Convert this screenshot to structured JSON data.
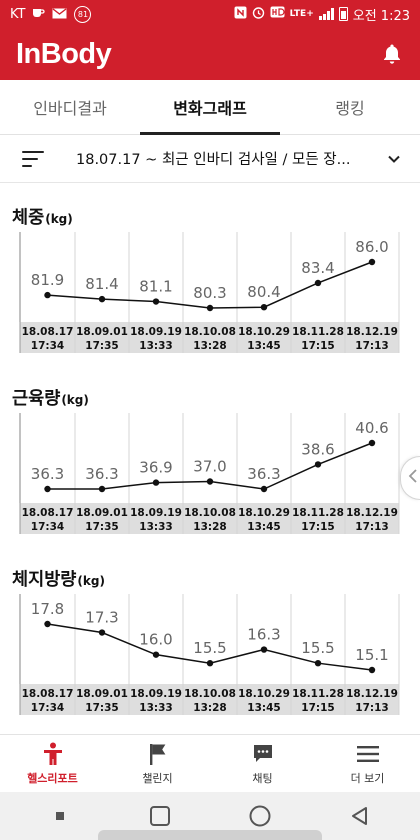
{
  "status_bar": {
    "carrier": "KT",
    "badge": "81",
    "network": "LTE+",
    "time": "오전 1:23"
  },
  "app": {
    "logo": "InBody"
  },
  "tabs": [
    {
      "label": "인바디결과",
      "active": false
    },
    {
      "label": "변화그래프",
      "active": true
    },
    {
      "label": "랭킹",
      "active": false
    }
  ],
  "filter": {
    "text": "18.07.17 ~ 최근 인바디 검사일 / 모든 장..."
  },
  "charts": [
    {
      "title": "체중",
      "unit": "(kg)",
      "dates": [
        "18.08.17",
        "18.09.01",
        "18.09.19",
        "18.10.08",
        "18.10.29",
        "18.11.28",
        "18.12.19"
      ],
      "times": [
        "17:34",
        "17:35",
        "13:33",
        "13:28",
        "13:45",
        "17:15",
        "17:13"
      ],
      "values": [
        81.9,
        81.4,
        81.1,
        80.3,
        80.4,
        83.4,
        86.0
      ],
      "labels": [
        "81.9",
        "81.4",
        "81.1",
        "80.3",
        "80.4",
        "83.4",
        "86.0"
      ]
    },
    {
      "title": "근육량",
      "unit": "(kg)",
      "dates": [
        "18.08.17",
        "18.09.01",
        "18.09.19",
        "18.10.08",
        "18.10.29",
        "18.11.28",
        "18.12.19"
      ],
      "times": [
        "17:34",
        "17:35",
        "13:33",
        "13:28",
        "13:45",
        "17:15",
        "17:13"
      ],
      "values": [
        36.3,
        36.3,
        36.9,
        37.0,
        36.3,
        38.6,
        40.6
      ],
      "labels": [
        "36.3",
        "36.3",
        "36.9",
        "37.0",
        "36.3",
        "38.6",
        "40.6"
      ]
    },
    {
      "title": "체지방량",
      "unit": "(kg)",
      "dates": [
        "18.08.17",
        "18.09.01",
        "18.09.19",
        "18.10.08",
        "18.10.29",
        "18.11.28",
        "18.12.19"
      ],
      "times": [
        "17:34",
        "17:35",
        "13:33",
        "13:28",
        "13:45",
        "17:15",
        "17:13"
      ],
      "values": [
        17.8,
        17.3,
        16.0,
        15.5,
        16.3,
        15.5,
        15.1
      ],
      "labels": [
        "17.8",
        "17.3",
        "16.0",
        "15.5",
        "16.3",
        "15.5",
        "15.1"
      ]
    }
  ],
  "chart_data": [
    {
      "type": "line",
      "title": "체중(kg)",
      "categories": [
        "18.08.17 17:34",
        "18.09.01 17:35",
        "18.09.19 13:33",
        "18.10.08 13:28",
        "18.10.29 13:45",
        "18.11.28 17:15",
        "18.12.19 17:13"
      ],
      "series": [
        {
          "values": [
            81.9,
            81.4,
            81.1,
            80.3,
            80.4,
            83.4,
            86.0
          ]
        }
      ]
    },
    {
      "type": "line",
      "title": "근육량(kg)",
      "categories": [
        "18.08.17 17:34",
        "18.09.01 17:35",
        "18.09.19 13:33",
        "18.10.08 13:28",
        "18.10.29 13:45",
        "18.11.28 17:15",
        "18.12.19 17:13"
      ],
      "series": [
        {
          "values": [
            36.3,
            36.3,
            36.9,
            37.0,
            36.3,
            38.6,
            40.6
          ]
        }
      ]
    },
    {
      "type": "line",
      "title": "체지방량(kg)",
      "categories": [
        "18.08.17 17:34",
        "18.09.01 17:35",
        "18.09.19 13:33",
        "18.10.08 13:28",
        "18.10.29 13:45",
        "18.11.28 17:15",
        "18.12.19 17:13"
      ],
      "series": [
        {
          "values": [
            17.8,
            17.3,
            16.0,
            15.5,
            16.3,
            15.5,
            15.1
          ]
        }
      ]
    }
  ],
  "bottom_nav": [
    {
      "label": "헬스리포트",
      "icon": "person-icon",
      "active": true
    },
    {
      "label": "챌린지",
      "icon": "flag-icon",
      "active": false
    },
    {
      "label": "채팅",
      "icon": "chat-icon",
      "active": false
    },
    {
      "label": "더 보기",
      "icon": "menu-icon",
      "active": false
    }
  ],
  "colors": {
    "brand": "#d01f2c",
    "line": "#111111",
    "value_label": "#666666",
    "date_band": "#dedede"
  }
}
